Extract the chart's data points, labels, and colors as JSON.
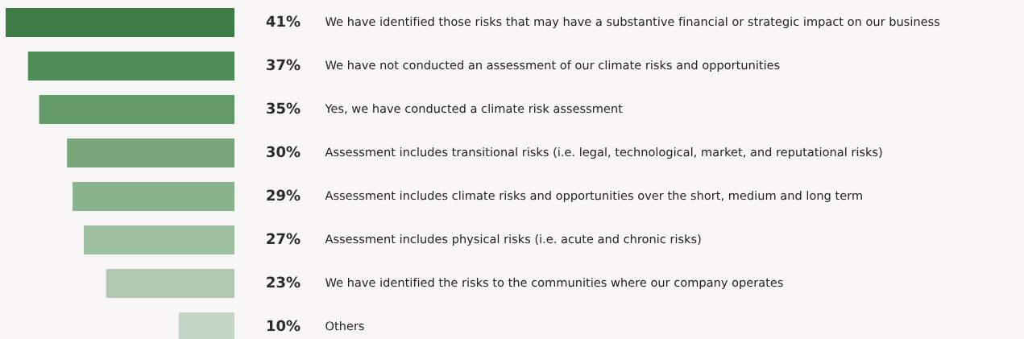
{
  "chart_data": {
    "type": "bar",
    "orientation": "horizontal",
    "categories": [
      "We have identified those risks that may have a substantive financial or strategic impact on our business",
      "We have not conducted an assessment of our climate risks and opportunities",
      "Yes, we have conducted a climate risk assessment",
      "Assessment includes transitional risks (i.e. legal, technological, market, and reputational risks)",
      "Assessment includes climate risks and opportunities over the short, medium and long term",
      "Assessment includes physical risks (i.e. acute and chronic risks)",
      "We have identified the risks to the communities where our company operates",
      "Others"
    ],
    "values": [
      41,
      37,
      35,
      30,
      29,
      27,
      23,
      10
    ],
    "value_labels": [
      "41%",
      "37%",
      "35%",
      "30%",
      "29%",
      "27%",
      "23%",
      "10%"
    ],
    "colors": [
      "#3d7d45",
      "#4e8c55",
      "#64996a",
      "#77a57c",
      "#89b38d",
      "#9ebfa0",
      "#b0c9b2",
      "#c5d5c6"
    ],
    "xlim": [
      41,
      0
    ],
    "tick_labels": false
  }
}
